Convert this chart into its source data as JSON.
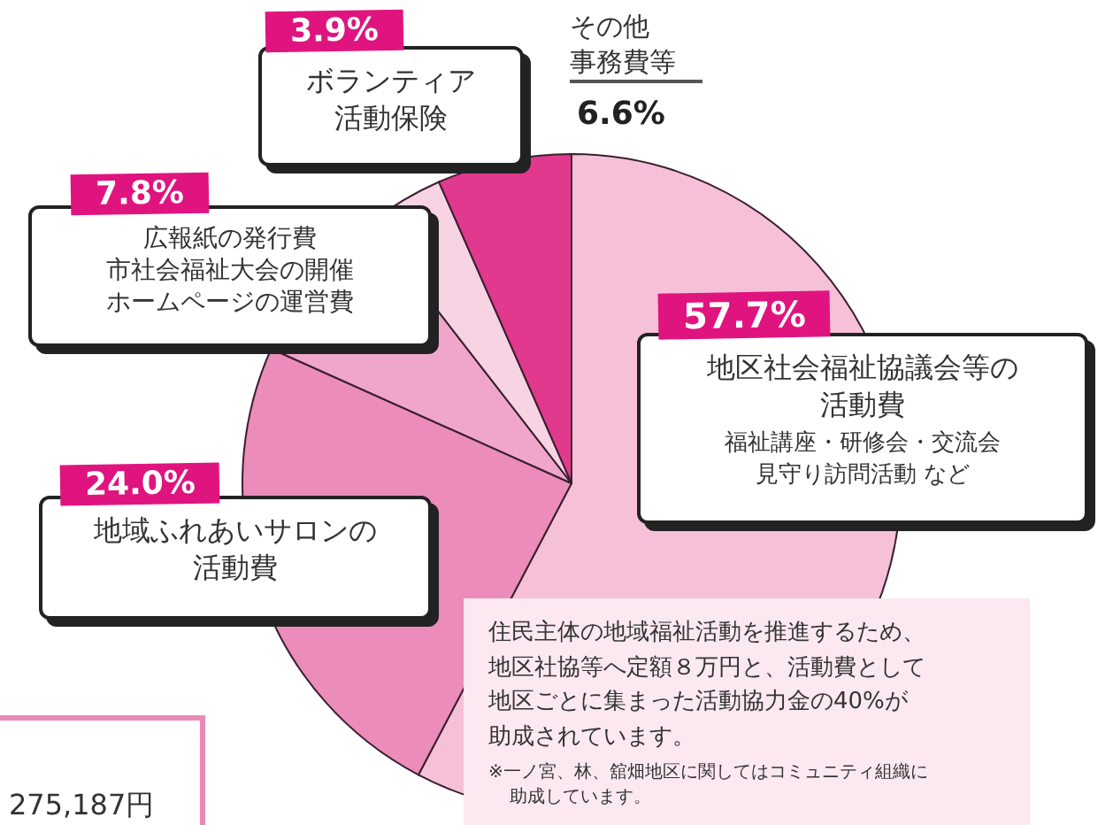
{
  "chart_data": {
    "type": "pie",
    "categories": [
      "地区社会福祉協議会等の活動費",
      "地域ふれあいサロンの活動費",
      "広報紙の発行費市社会福祉大会の開催ホームページの運営費",
      "ボランティア活動保険",
      "その他事務費等"
    ],
    "values": [
      57.7,
      24.0,
      7.8,
      3.9,
      6.6
    ],
    "colors": [
      "#f5c0d8",
      "#eb8cba",
      "#f0a6cb",
      "#f8d3e4",
      "#e0398d"
    ],
    "value_labels": [
      "57.7%",
      "24.0%",
      "7.8%",
      "3.9%",
      "6.6%"
    ],
    "annotations": [
      {
        "text": "福祉講座・研修会・交流会見守り訪問活動 など",
        "x": "地区社会福祉協議会等の活動費"
      },
      "住民主体の地域福祉活動を推進するため、地区社協等へ定額８万円と、活動費として地区ごとに集まった活動協力金の40%が助成されています。",
      "※一ノ宮、林、舘畑地区に関してはコミュニティ組織に助成しています。",
      "275,187円"
    ]
  }
}
